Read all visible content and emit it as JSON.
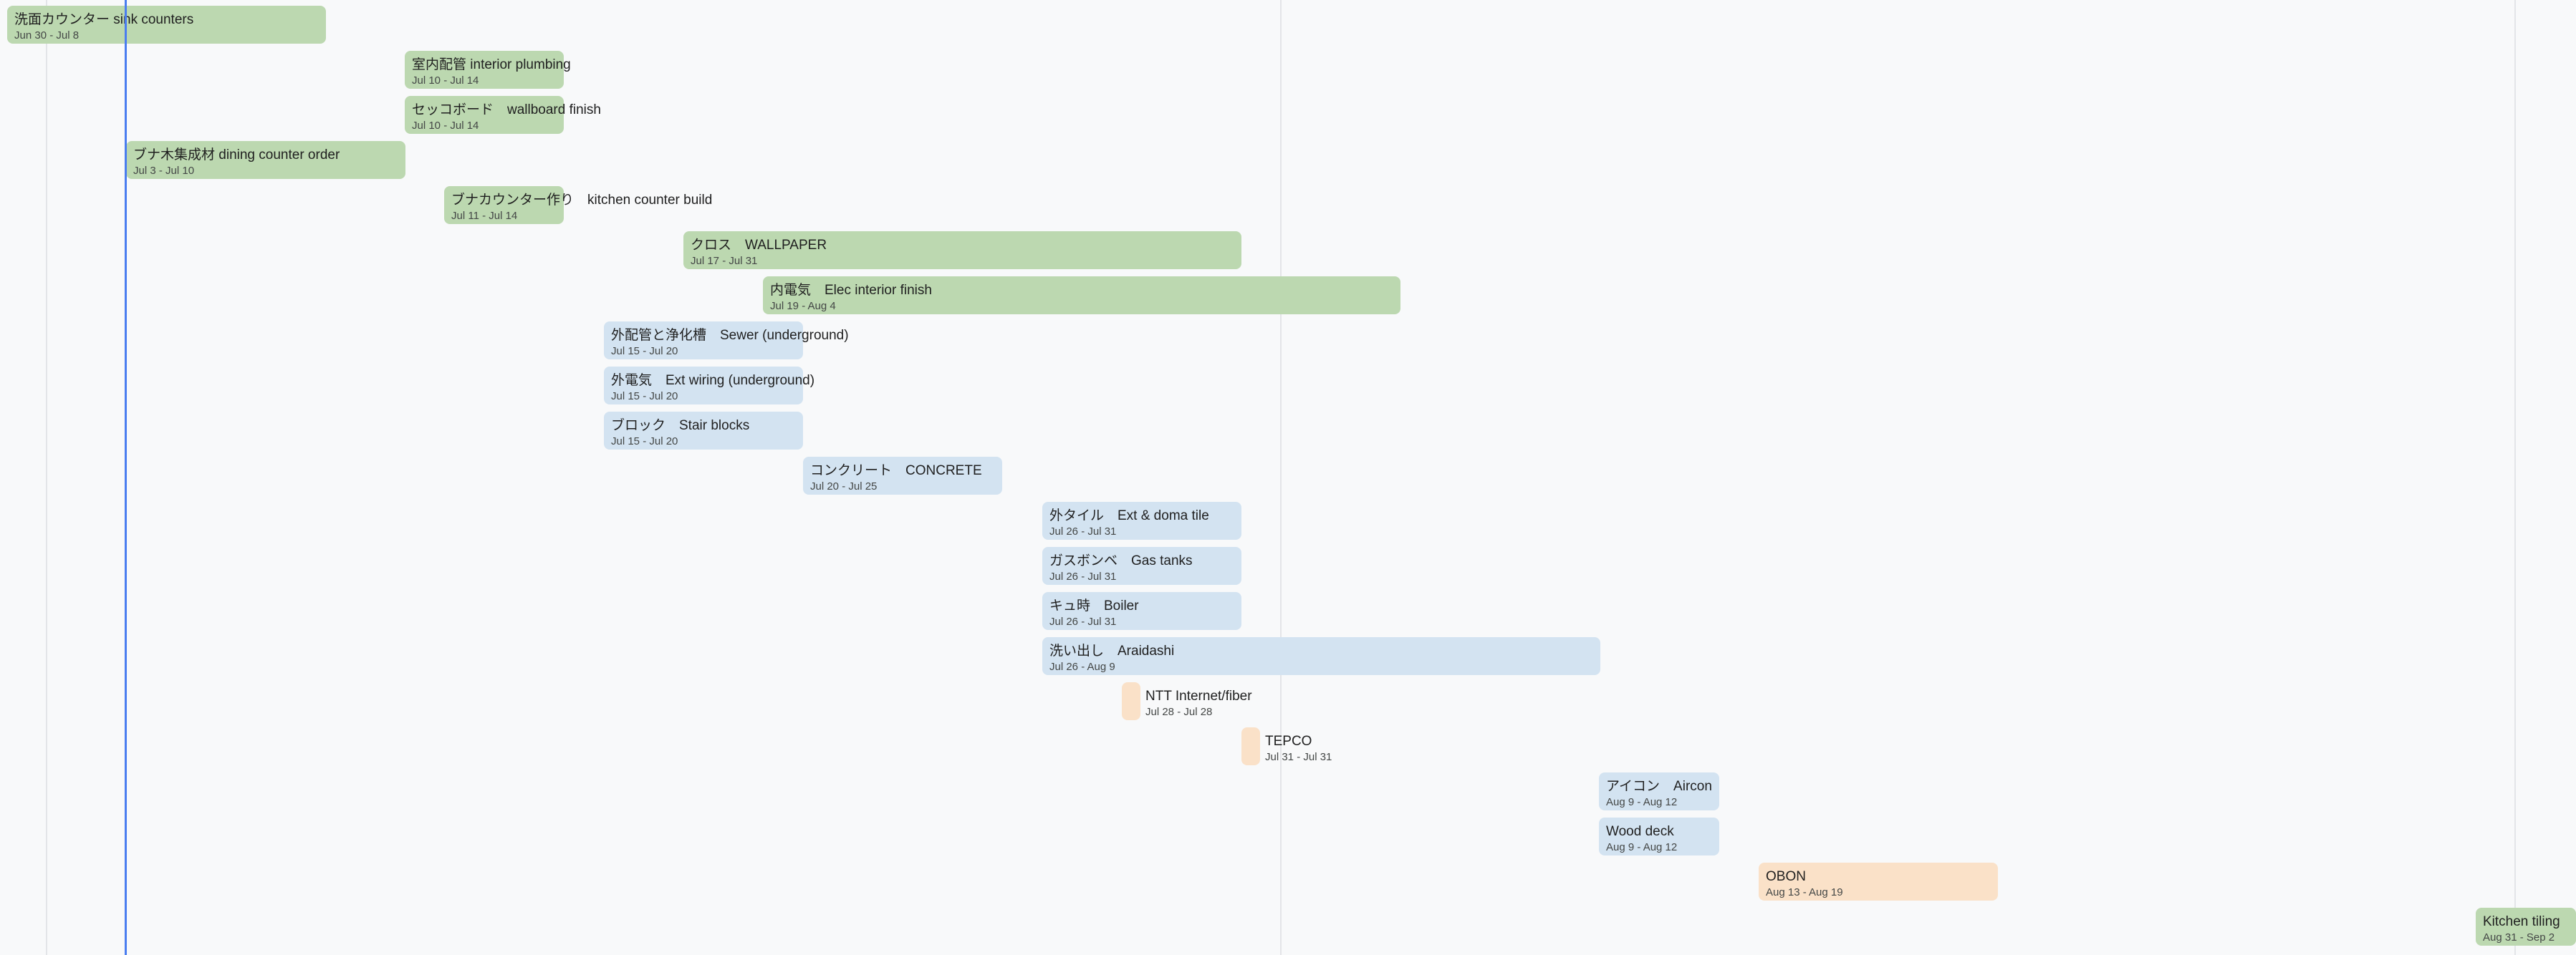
{
  "colors": {
    "green": "#bcd8b0",
    "blue": "#d3e3f1",
    "orange": "#fae1c8",
    "today": "#4a7df0"
  },
  "tasks": [
    {
      "title": "洗面カウンター sink counters",
      "dates": "Jun 30 - Jul 8",
      "color": "green"
    },
    {
      "title": "室内配管 interior plumbing",
      "dates": "Jul 10 - Jul 14",
      "color": "green"
    },
    {
      "title": "セッコボード　wallboard finish",
      "dates": "Jul 10 - Jul 14",
      "color": "green"
    },
    {
      "title": "ブナ木集成材 dining counter order",
      "dates": "Jul 3 - Jul 10",
      "color": "green"
    },
    {
      "title": "ブナカウンター作り　kitchen counter build",
      "dates": "Jul 11 - Jul 14",
      "color": "green"
    },
    {
      "title": "クロス　WALLPAPER",
      "dates": "Jul 17 - Jul 31",
      "color": "green"
    },
    {
      "title": "内電気　Elec interior finish",
      "dates": "Jul 19 - Aug 4",
      "color": "green"
    },
    {
      "title": "外配管と浄化槽　Sewer (underground)",
      "dates": "Jul 15 - Jul 20",
      "color": "blue"
    },
    {
      "title": "外電気　Ext wiring (underground)",
      "dates": "Jul 15 - Jul 20",
      "color": "blue"
    },
    {
      "title": "ブロック　Stair blocks",
      "dates": "Jul 15 - Jul 20",
      "color": "blue"
    },
    {
      "title": "コンクリート　CONCRETE",
      "dates": "Jul 20 - Jul 25",
      "color": "blue"
    },
    {
      "title": "外タイル　Ext & doma tile",
      "dates": "Jul 26 - Jul 31",
      "color": "blue"
    },
    {
      "title": "ガスボンベ　Gas tanks",
      "dates": "Jul 26 - Jul 31",
      "color": "blue"
    },
    {
      "title": "キュ時　Boiler",
      "dates": "Jul 26 - Jul 31",
      "color": "blue"
    },
    {
      "title": "洗い出し　Araidashi",
      "dates": "Jul 26 - Aug 9",
      "color": "blue"
    },
    {
      "title": "NTT Internet/fiber",
      "dates": "Jul 28 - Jul 28",
      "color": "orange"
    },
    {
      "title": "TEPCO",
      "dates": "Jul 31 - Jul 31",
      "color": "orange"
    },
    {
      "title": "アイコン　Aircon",
      "dates": "Aug 9 - Aug 12",
      "color": "blue"
    },
    {
      "title": "Wood deck",
      "dates": "Aug 9 - Aug 12",
      "color": "blue"
    },
    {
      "title": "OBON",
      "dates": "Aug 13 - Aug 19",
      "color": "orange"
    },
    {
      "title": "Kitchen tiling",
      "dates": "Aug 31 - Sep 2",
      "color": "green"
    }
  ]
}
